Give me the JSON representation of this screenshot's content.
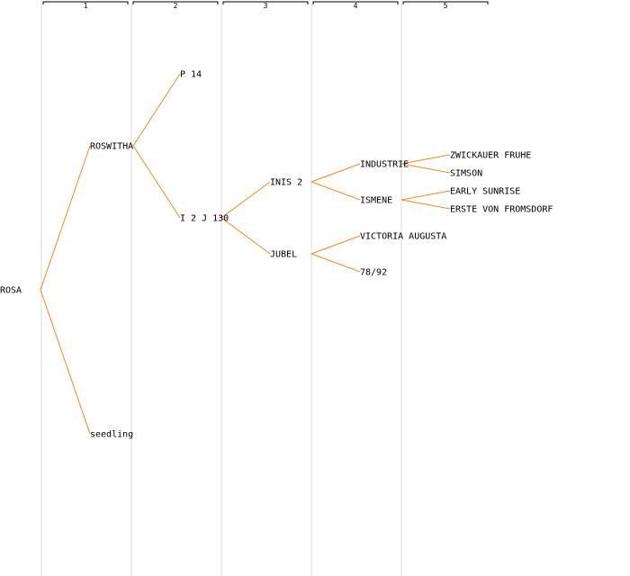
{
  "generations": [
    "1",
    "2",
    "3",
    "4",
    "5"
  ],
  "colors": {
    "edge": "#f08c1e",
    "column_line": "#ececec",
    "text": "#000000"
  },
  "nodes": [
    {
      "id": "rosa",
      "label": "ROSA",
      "gen": 0
    },
    {
      "id": "roswitha",
      "label": "ROSWITHA",
      "gen": 1
    },
    {
      "id": "seedling",
      "label": "seedling",
      "gen": 1
    },
    {
      "id": "p14",
      "label": "P 14",
      "gen": 2
    },
    {
      "id": "i2j130",
      "label": "I 2 J 130",
      "gen": 2
    },
    {
      "id": "inis2",
      "label": "INIS 2",
      "gen": 3
    },
    {
      "id": "jubel",
      "label": "JUBEL",
      "gen": 3
    },
    {
      "id": "industrie",
      "label": "INDUSTRIE",
      "gen": 4
    },
    {
      "id": "ismene",
      "label": "ISMENE",
      "gen": 4
    },
    {
      "id": "victoria",
      "label": "VICTORIA AUGUSTA",
      "gen": 4
    },
    {
      "id": "n7892",
      "label": "78/92",
      "gen": 4
    },
    {
      "id": "zwickauer",
      "label": "ZWICKAUER FRUHE",
      "gen": 5
    },
    {
      "id": "simson",
      "label": "SIMSON",
      "gen": 5
    },
    {
      "id": "early",
      "label": "EARLY SUNRISE",
      "gen": 5
    },
    {
      "id": "erste",
      "label": "ERSTE VON FROMSDORF",
      "gen": 5
    }
  ],
  "edges": [
    [
      "rosa",
      "roswitha"
    ],
    [
      "rosa",
      "seedling"
    ],
    [
      "roswitha",
      "p14"
    ],
    [
      "roswitha",
      "i2j130"
    ],
    [
      "i2j130",
      "inis2"
    ],
    [
      "i2j130",
      "jubel"
    ],
    [
      "inis2",
      "industrie"
    ],
    [
      "inis2",
      "ismene"
    ],
    [
      "jubel",
      "victoria"
    ],
    [
      "jubel",
      "n7892"
    ],
    [
      "industrie",
      "zwickauer"
    ],
    [
      "industrie",
      "simson"
    ],
    [
      "ismene",
      "early"
    ],
    [
      "ismene",
      "erste"
    ]
  ]
}
